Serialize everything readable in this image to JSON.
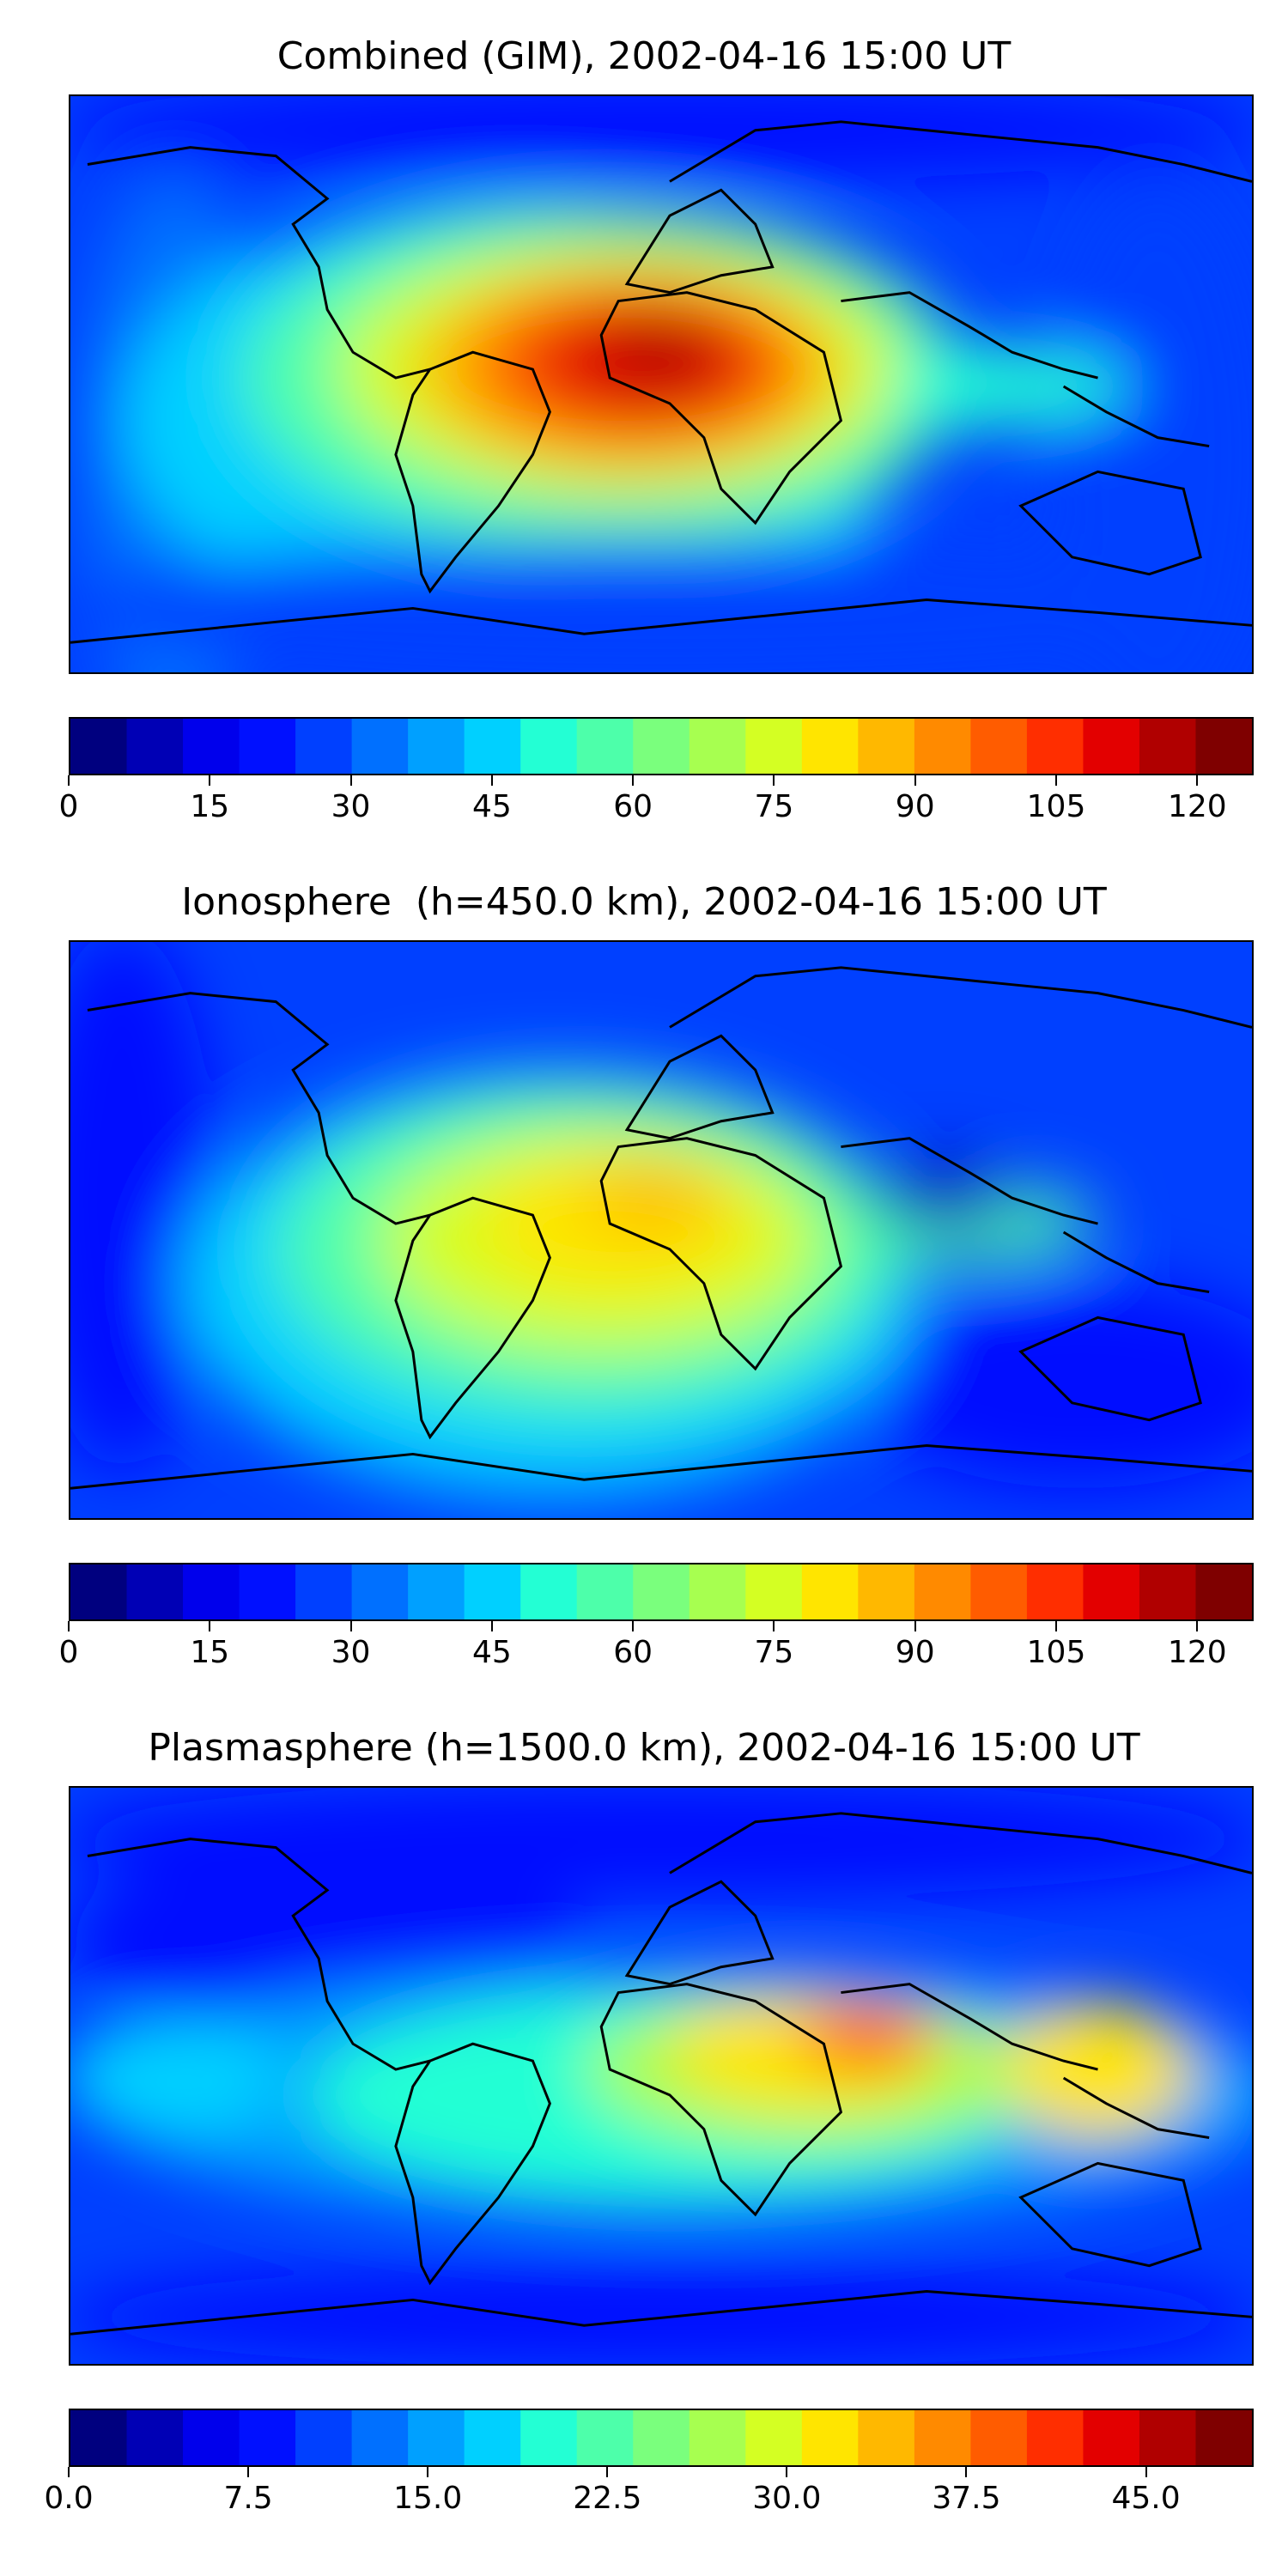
{
  "palette": [
    "#00007f",
    "#0000b5",
    "#0000ec",
    "#0010ff",
    "#0040ff",
    "#0070ff",
    "#00a0ff",
    "#00d0ff",
    "#23ffd4",
    "#4dffaa",
    "#7aff7d",
    "#a7ff50",
    "#d4ff23",
    "#ffe500",
    "#ffb800",
    "#ff8a00",
    "#ff5c00",
    "#ff2e00",
    "#e30000",
    "#b00000",
    "#7f0000"
  ],
  "panels": [
    {
      "title": "Combined (GIM), 2002-04-16 15:00 UT",
      "colorbar": {
        "min": 0,
        "max": 126,
        "ticks": [
          "0",
          "15",
          "30",
          "45",
          "60",
          "75",
          "90",
          "105",
          "120"
        ],
        "tick_values": [
          0,
          15,
          30,
          45,
          60,
          75,
          90,
          105,
          120
        ]
      }
    },
    {
      "title": "Ionosphere  (h=450.0 km), 2002-04-16 15:00 UT",
      "colorbar": {
        "min": 0,
        "max": 126,
        "ticks": [
          "0",
          "15",
          "30",
          "45",
          "60",
          "75",
          "90",
          "105",
          "120"
        ],
        "tick_values": [
          0,
          15,
          30,
          45,
          60,
          75,
          90,
          105,
          120
        ]
      }
    },
    {
      "title": "Plasmasphere (h=1500.0 km), 2002-04-16 15:00 UT",
      "colorbar": {
        "min": 0,
        "max": 49.5,
        "ticks": [
          "0.0",
          "7.5",
          "15.0",
          "22.5",
          "30.0",
          "37.5",
          "45.0"
        ],
        "tick_values": [
          0,
          7.5,
          15,
          22.5,
          30,
          37.5,
          45
        ]
      }
    }
  ]
}
